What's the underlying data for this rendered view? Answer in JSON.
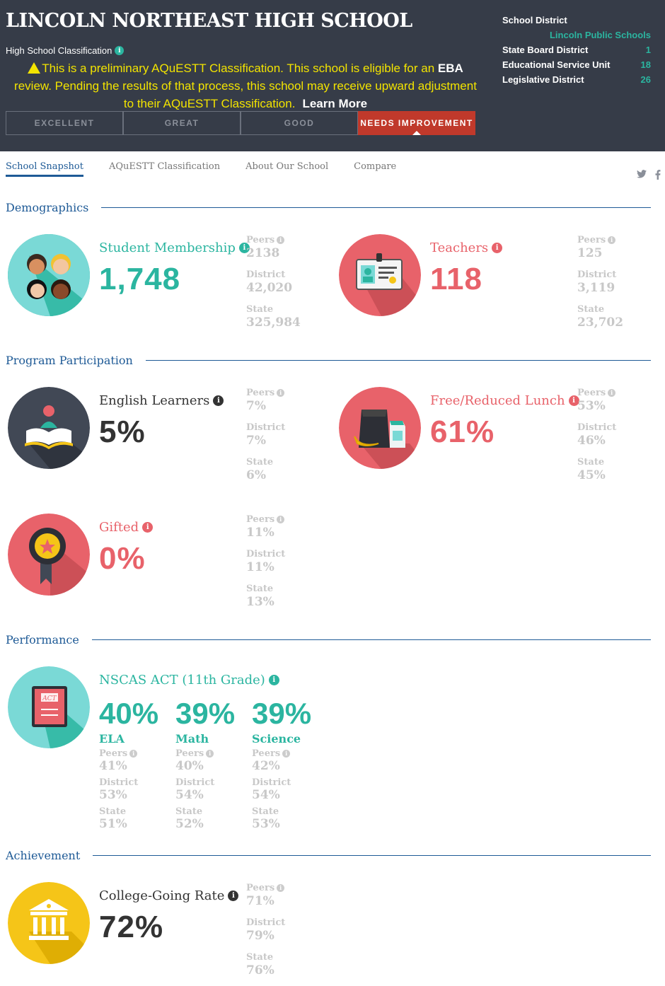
{
  "header": {
    "school_name": "LINCOLN NORTHEAST HIGH SCHOOL",
    "classification_label": "High School Classification",
    "notice_part1": "This is a preliminary AQuESTT Classification. This school is eligible for an ",
    "notice_bold": "EBA",
    "notice_part2": " review. Pending the results of that process, this school may receive upward adjustment to their AQuESTT Classification.",
    "learn_more": "Learn More",
    "ratings": [
      "EXCELLENT",
      "GREAT",
      "GOOD",
      "NEEDS IMPROVEMENT"
    ],
    "active_rating": "NEEDS IMPROVEMENT",
    "districts": {
      "school_district_label": "School District",
      "school_district_value": "Lincoln Public Schools",
      "state_board_label": "State Board District",
      "state_board_value": "1",
      "esu_label": "Educational Service Unit",
      "esu_value": "18",
      "legislative_label": "Legislative District",
      "legislative_value": "26"
    }
  },
  "nav": {
    "tabs": [
      "School Snapshot",
      "AQuESTT Classification",
      "About Our School",
      "Compare"
    ],
    "active": "School Snapshot",
    "social": [
      "twitter-icon",
      "facebook-icon"
    ]
  },
  "sections": {
    "demographics": "Demographics",
    "program": "Program Participation",
    "performance": "Performance",
    "achievement": "Achievement"
  },
  "metrics": {
    "membership": {
      "label": "Student Membership",
      "value": "1,748",
      "peers": "2138",
      "district": "42,020",
      "state": "325,984"
    },
    "teachers": {
      "label": "Teachers",
      "value": "118",
      "peers": "125",
      "district": "3,119",
      "state": "23,702"
    },
    "ell": {
      "label": "English Learners",
      "value": "5%",
      "peers": "7%",
      "district": "7%",
      "state": "6%"
    },
    "lunch": {
      "label": "Free/Reduced Lunch",
      "value": "61%",
      "peers": "53%",
      "district": "46%",
      "state": "45%"
    },
    "gifted": {
      "label": "Gifted",
      "value": "0%",
      "peers": "11%",
      "district": "11%",
      "state": "13%"
    },
    "college": {
      "label": "College-Going Rate",
      "value": "72%",
      "peers": "71%",
      "district": "79%",
      "state": "76%"
    }
  },
  "cmp_labels": {
    "peers": "Peers",
    "district": "District",
    "state": "State"
  },
  "act": {
    "label": "NSCAS ACT (11th Grade)",
    "book_text": "ACT",
    "subjects": [
      {
        "name": "ELA",
        "value": "40%",
        "peers": "41%",
        "district": "53%",
        "state": "51%"
      },
      {
        "name": "Math",
        "value": "39%",
        "peers": "40%",
        "district": "54%",
        "state": "52%"
      },
      {
        "name": "Science",
        "value": "39%",
        "peers": "42%",
        "district": "54%",
        "state": "53%"
      }
    ]
  },
  "colors": {
    "teal": "#2bb5a0",
    "red": "#e8626a",
    "navy": "#1e5a96",
    "header": "#363c48",
    "yellow": "#f5c518"
  }
}
